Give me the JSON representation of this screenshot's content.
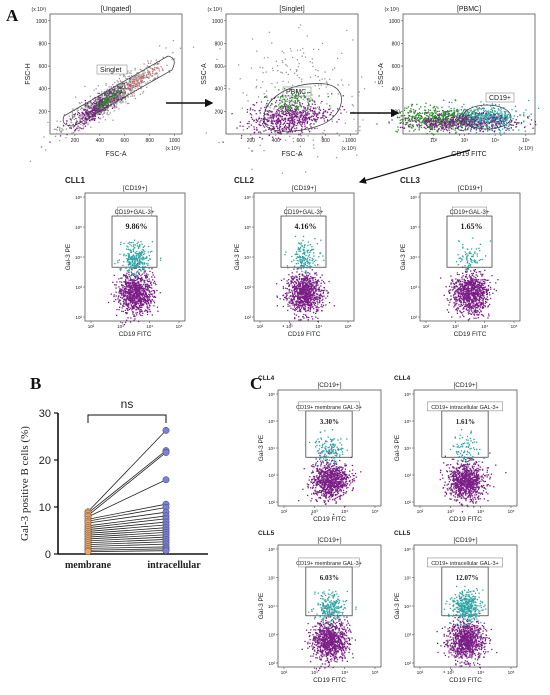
{
  "panel_labels": {
    "a": "A",
    "b": "B",
    "c": "C"
  },
  "gating": [
    {
      "title": "[Ungated]",
      "gate": "Singlet",
      "xlabel": "FSC-A",
      "ylabel": "FSC-H",
      "xticks": [
        "200",
        "400",
        "600",
        "800",
        "1000"
      ],
      "yticks": [
        "200",
        "400",
        "600",
        "800",
        "1000"
      ],
      "exp": "(x 10³)",
      "cloud": "diag"
    },
    {
      "title": "[Singlet]",
      "gate": "PBMC",
      "xlabel": "FSC-A",
      "ylabel": "SSC-A",
      "xticks": [
        "200",
        "400",
        "600",
        "800",
        "1000"
      ],
      "yticks": [
        "200",
        "400",
        "600",
        "800",
        "1000"
      ],
      "exp": "(x 10³)",
      "cloud": "pbmc"
    },
    {
      "title": "[PBMC]",
      "gate": "CD19+",
      "xlabel": "CD19 FITC",
      "ylabel": "SSC-A",
      "xticks": [
        "10²",
        "10³",
        "10⁴",
        "10⁵"
      ],
      "yticks": [
        "200",
        "400",
        "600",
        "800",
        "1000"
      ],
      "exp": "(x 10³)",
      "cloud": "cd19"
    }
  ],
  "cll_plots": [
    {
      "sample": "CLL1",
      "title": "[CD19+]",
      "gate_label": "CD19+GAL-3+",
      "percent": "9.86%",
      "xlabel": "CD19 FITC",
      "ylabel": "Gal-3 PE",
      "pos_fraction": 0.6
    },
    {
      "sample": "CLL2",
      "title": "[CD19+]",
      "gate_label": "CD19+GAL-3+",
      "percent": "4.16%",
      "xlabel": "CD19 FITC",
      "ylabel": "Gal-3 PE",
      "pos_fraction": 0.3
    },
    {
      "sample": "CLL3",
      "title": "[CD19+]",
      "gate_label": "CD19+GAL-3+",
      "percent": "1.65%",
      "xlabel": "CD19 FITC",
      "ylabel": "Gal-3 PE",
      "pos_fraction": 0.1
    }
  ],
  "log_ticks": [
    "10²",
    "10³",
    "10⁴",
    "10⁵"
  ],
  "log_yticks": [
    "10²",
    "10³",
    "10⁴",
    "10⁵",
    "10⁶"
  ],
  "chart_data": {
    "type": "scatter",
    "categories": [
      "membrane",
      "intracellular"
    ],
    "ylabel": "Gal-3 positive B cells (%)",
    "ylim": [
      0,
      30
    ],
    "yticks": [
      0,
      10,
      20,
      30
    ],
    "significance": "ns",
    "pairs": [
      [
        9.0,
        26.3
      ],
      [
        8.7,
        22.0
      ],
      [
        8.2,
        21.6
      ],
      [
        7.9,
        15.8
      ],
      [
        7.4,
        10.6
      ],
      [
        7.0,
        9.9
      ],
      [
        6.6,
        8.9
      ],
      [
        6.0,
        8.1
      ],
      [
        5.6,
        7.5
      ],
      [
        5.2,
        6.8
      ],
      [
        4.8,
        6.2
      ],
      [
        4.4,
        5.6
      ],
      [
        4.0,
        5.1
      ],
      [
        3.6,
        4.6
      ],
      [
        3.2,
        4.1
      ],
      [
        2.8,
        3.6
      ],
      [
        2.4,
        3.1
      ],
      [
        2.0,
        2.6
      ],
      [
        1.6,
        2.1
      ],
      [
        1.2,
        1.5
      ],
      [
        0.8,
        1.1
      ],
      [
        0.5,
        0.7
      ]
    ]
  },
  "c_plots": [
    {
      "sample": "CLL4",
      "title": "[CD19+]",
      "gate_label": "CD19+ membrane GAL-3+",
      "percent": "3.30%",
      "xlabel": "CD19 FITC",
      "ylabel": "Gal-3 PE",
      "pos_fraction": 0.25
    },
    {
      "sample": "CLL4",
      "title": "[CD19+]",
      "gate_label": "CD19+ intracellular GAL-3+",
      "percent": "1.61%",
      "xlabel": "CD19 FITC",
      "ylabel": "Gal-3 PE",
      "pos_fraction": 0.1
    },
    {
      "sample": "CLL5",
      "title": "[CD19+]",
      "gate_label": "CD19+ membrane GAL-3+",
      "percent": "6.03%",
      "xlabel": "CD19 FITC",
      "ylabel": "Gal-3 PE",
      "pos_fraction": 0.5
    },
    {
      "sample": "CLL5",
      "title": "[CD19+]",
      "gate_label": "CD19+ intracellular GAL-3+",
      "percent": "12.07%",
      "xlabel": "CD19 FITC",
      "ylabel": "Gal-3 PE",
      "pos_fraction": 0.9
    }
  ],
  "colors": {
    "purple": "#7a1e86",
    "teal": "#2fa4a4",
    "green": "#2e8b2e",
    "gray": "#9a9a9a",
    "orange": "#f0a45e",
    "blue": "#7b7fe0",
    "gate": "#444444"
  }
}
